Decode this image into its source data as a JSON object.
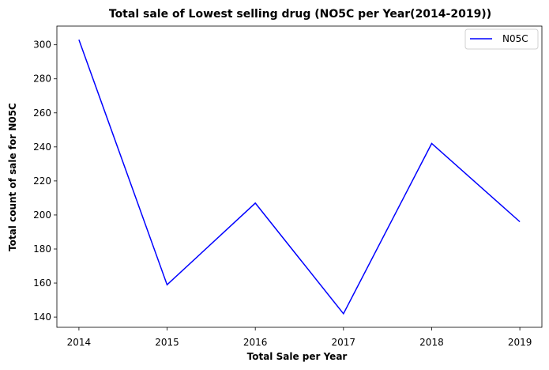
{
  "chart_data": {
    "type": "line",
    "title": "Total sale of Lowest selling drug (NO5C per Year(2014-2019))",
    "xlabel": "Total Sale per Year",
    "ylabel": "Total count of sale for N05C",
    "x": [
      2014,
      2015,
      2016,
      2017,
      2018,
      2019
    ],
    "series": [
      {
        "name": "N05C",
        "values": [
          303,
          159,
          207,
          142,
          242,
          196
        ],
        "color": "#0000ff"
      }
    ],
    "xlim": [
      2013.75,
      2019.25
    ],
    "ylim": [
      134,
      311
    ],
    "xticks": [
      2014,
      2015,
      2016,
      2017,
      2018,
      2019
    ],
    "yticks": [
      140,
      160,
      180,
      200,
      220,
      240,
      260,
      280,
      300
    ],
    "grid": false,
    "legend_position": "top-right"
  }
}
